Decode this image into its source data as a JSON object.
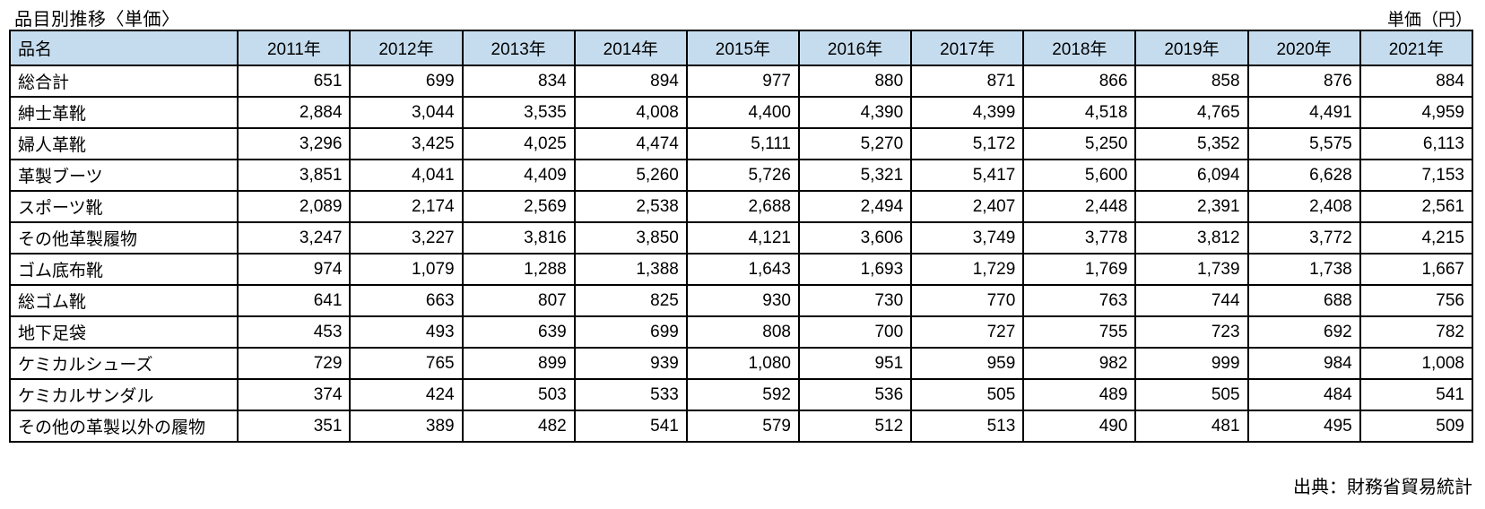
{
  "title": "品目別推移〈単価〉",
  "unit_label": "単価（円）",
  "source": "出典：財務省貿易統計",
  "colors": {
    "header_fill": "#c5dcee",
    "border": "#000000",
    "text": "#000000",
    "background": "#ffffff"
  },
  "table": {
    "item_header": "品名",
    "year_headers": [
      "2011年",
      "2012年",
      "2013年",
      "2014年",
      "2015年",
      "2016年",
      "2017年",
      "2018年",
      "2019年",
      "2020年",
      "2021年"
    ]
  },
  "chart_data": {
    "type": "table",
    "title": "品目別推移〈単価〉",
    "unit": "円",
    "categories": [
      "2011年",
      "2012年",
      "2013年",
      "2014年",
      "2015年",
      "2016年",
      "2017年",
      "2018年",
      "2019年",
      "2020年",
      "2021年"
    ],
    "series": [
      {
        "name": "総合計",
        "values": [
          651,
          699,
          834,
          894,
          977,
          880,
          871,
          866,
          858,
          876,
          884
        ]
      },
      {
        "name": "紳士革靴",
        "values": [
          2884,
          3044,
          3535,
          4008,
          4400,
          4390,
          4399,
          4518,
          4765,
          4491,
          4959
        ]
      },
      {
        "name": "婦人革靴",
        "values": [
          3296,
          3425,
          4025,
          4474,
          5111,
          5270,
          5172,
          5250,
          5352,
          5575,
          6113
        ]
      },
      {
        "name": "革製ブーツ",
        "values": [
          3851,
          4041,
          4409,
          5260,
          5726,
          5321,
          5417,
          5600,
          6094,
          6628,
          7153
        ]
      },
      {
        "name": "スポーツ靴",
        "values": [
          2089,
          2174,
          2569,
          2538,
          2688,
          2494,
          2407,
          2448,
          2391,
          2408,
          2561
        ]
      },
      {
        "name": "その他革製履物",
        "values": [
          3247,
          3227,
          3816,
          3850,
          4121,
          3606,
          3749,
          3778,
          3812,
          3772,
          4215
        ]
      },
      {
        "name": "ゴム底布靴",
        "values": [
          974,
          1079,
          1288,
          1388,
          1643,
          1693,
          1729,
          1769,
          1739,
          1738,
          1667
        ]
      },
      {
        "name": "総ゴム靴",
        "values": [
          641,
          663,
          807,
          825,
          930,
          730,
          770,
          763,
          744,
          688,
          756
        ]
      },
      {
        "name": "地下足袋",
        "values": [
          453,
          493,
          639,
          699,
          808,
          700,
          727,
          755,
          723,
          692,
          782
        ]
      },
      {
        "name": "ケミカルシューズ",
        "values": [
          729,
          765,
          899,
          939,
          1080,
          951,
          959,
          982,
          999,
          984,
          1008
        ]
      },
      {
        "name": "ケミカルサンダル",
        "values": [
          374,
          424,
          503,
          533,
          592,
          536,
          505,
          489,
          505,
          484,
          541
        ]
      },
      {
        "name": "その他の革製以外の履物",
        "values": [
          351,
          389,
          482,
          541,
          579,
          512,
          513,
          490,
          481,
          495,
          509
        ]
      }
    ]
  }
}
